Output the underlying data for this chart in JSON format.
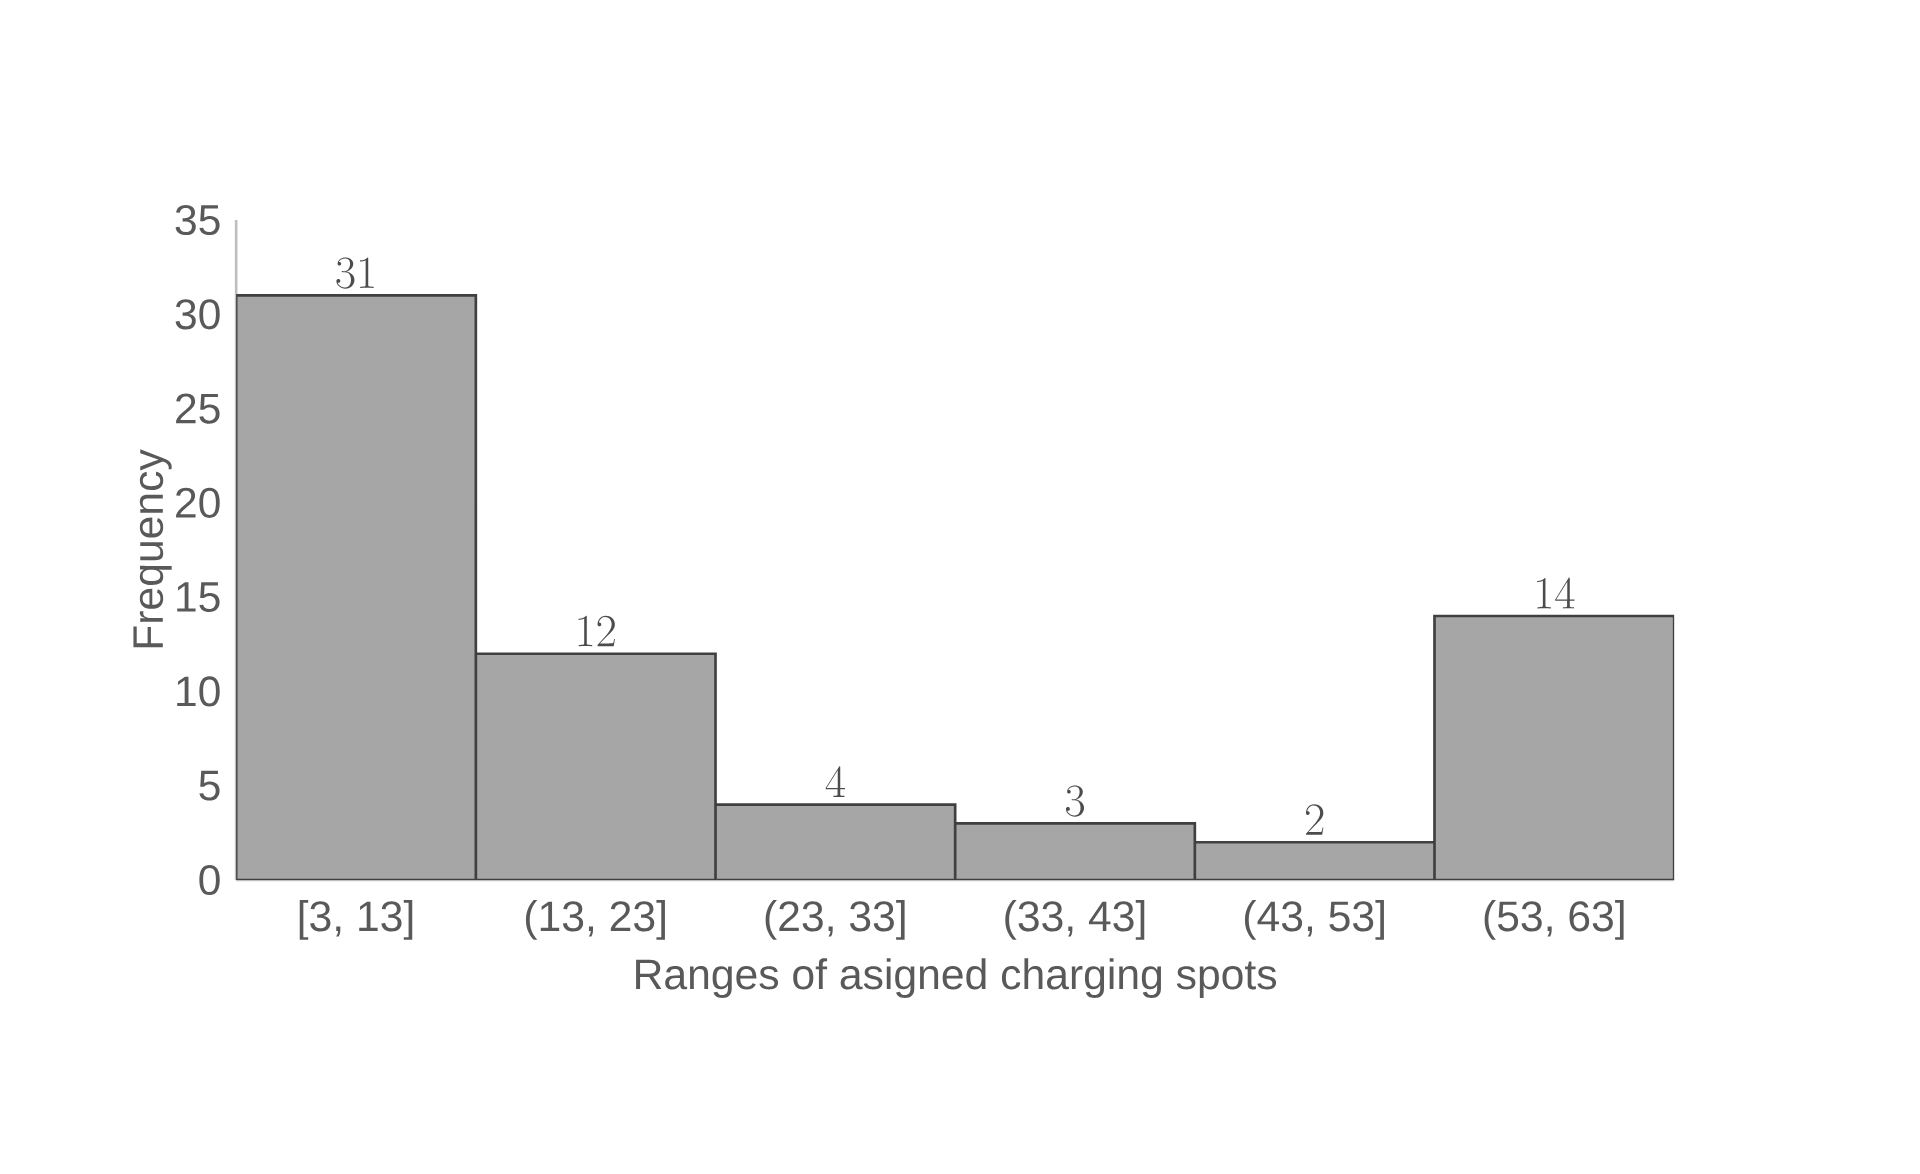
{
  "chart_data": {
    "type": "bar",
    "xlabel": "Ranges of asigned charging spots",
    "ylabel": "Frequency",
    "categories": [
      "[3, 13]",
      "(13, 23]",
      "(23, 33]",
      "(33, 43]",
      "(43, 53]",
      "(53, 63]"
    ],
    "values": [
      31,
      12,
      4,
      3,
      2,
      14
    ],
    "color": "#a6a6a6",
    "ylim": [
      0,
      35
    ],
    "yticks": [
      0,
      5,
      10,
      15,
      20,
      25,
      30,
      35
    ],
    "data_labels": true
  }
}
